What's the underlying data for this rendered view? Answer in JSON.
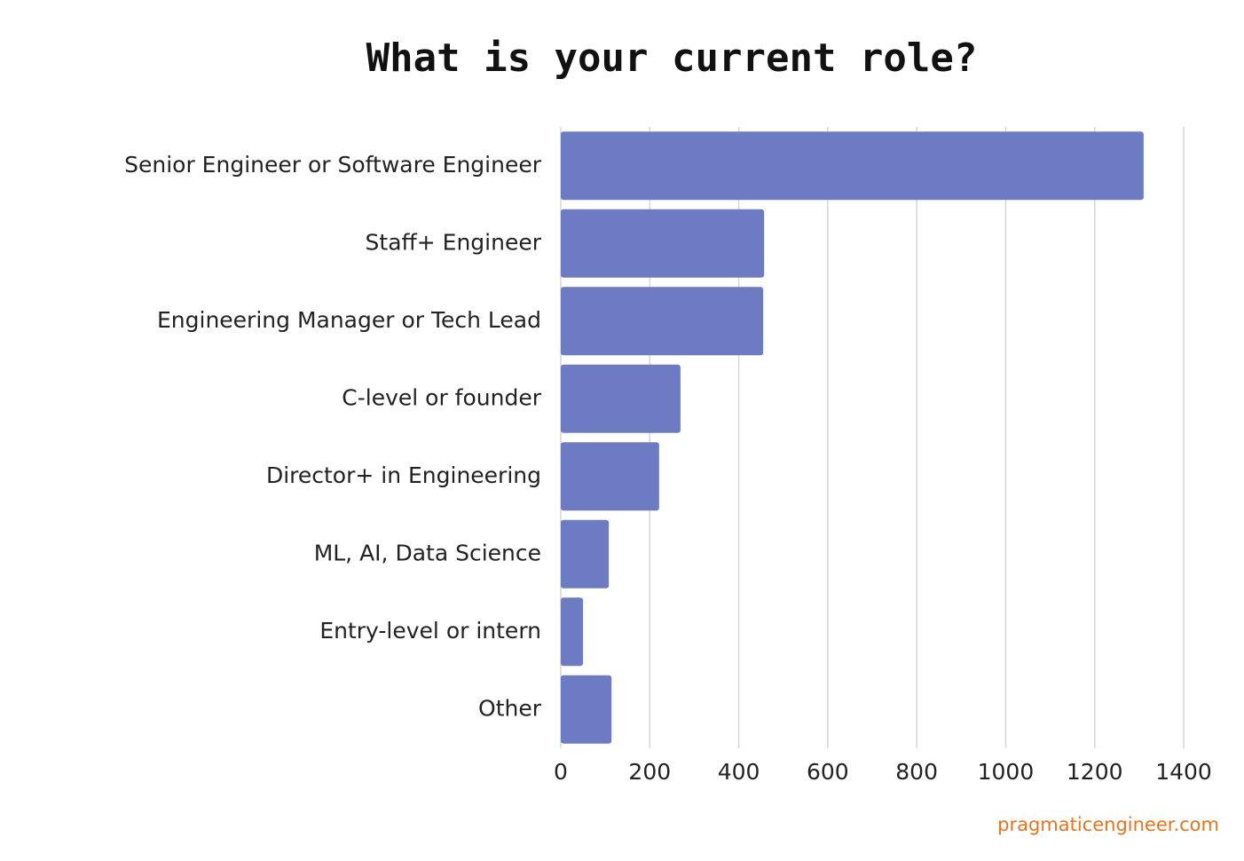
{
  "chart_data": {
    "type": "bar",
    "orientation": "horizontal",
    "title": "What is your current role?",
    "categories": [
      "Senior Engineer or Software Engineer",
      "Staff+ Engineer",
      "Engineering Manager or Tech Lead",
      "C-level or founder",
      "Director+ in Engineering",
      "ML, AI, Data Science",
      "Entry-level or intern",
      "Other"
    ],
    "values": [
      1310,
      457,
      455,
      269,
      221,
      108,
      50,
      114
    ],
    "color": "#6d7bc3",
    "xlim": [
      0,
      1400
    ],
    "xticks": [
      0,
      200,
      400,
      600,
      800,
      1000,
      1200,
      1400
    ],
    "grid": true,
    "source": "pragmaticengineer.com"
  }
}
